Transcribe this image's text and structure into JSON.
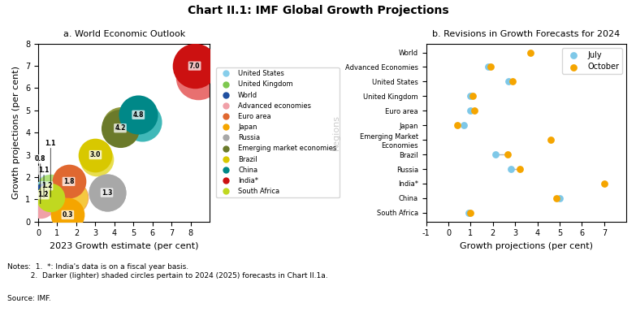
{
  "title": "Chart II.1: IMF Global Growth Projections",
  "annotations": [
    "Notes:  1.  *: India's data is on a fiscal year basis.\n          2.  Darker (lighter) shaded circles pertain to 2024 (2025) forecasts in Chart II.1a.",
    "Source: IMF."
  ],
  "chart_data": [
    {
      "type": "bubble",
      "title": "a. World Economic Outlook",
      "x_label": "2023 Growth estimate (per cent)",
      "y_label": "Growth projections (per cent)",
      "xlim": [
        0,
        9
      ],
      "ylim": [
        0,
        8
      ],
      "xticks": [
        0,
        1,
        2,
        3,
        4,
        5,
        6,
        7,
        8
      ],
      "yticks": [
        0,
        1,
        2,
        3,
        4,
        5,
        6,
        7,
        8
      ],
      "data_labels": true,
      "legend": "right",
      "series": [
        {
          "name": "United States",
          "color": "#87CEEB",
          "x": [
            0.55,
            0.25
          ],
          "values": [
            1.5,
            1.2
          ],
          "sizes": [
            650,
            650
          ],
          "colors": [
            "#b8dff5",
            "#87CEEB"
          ],
          "value_labels": [
            null,
            "1.2"
          ]
        },
        {
          "name": "United Kingdom",
          "color": "#7ec850",
          "x": [
            0.65,
            0.45
          ],
          "values": [
            1.5,
            1.2
          ],
          "sizes": [
            650,
            650
          ],
          "colors": [
            "#b0e07a",
            "#7ec850"
          ],
          "value_labels": [
            null,
            "1.2"
          ]
        },
        {
          "name": "World",
          "color": "#2050a0",
          "x": [
            0.5,
            0.3
          ],
          "values": [
            1.1,
            1.1
          ],
          "sizes": [
            650,
            650
          ],
          "colors": [
            "#4070c0",
            "#2050a0"
          ],
          "value_labels": [
            null,
            "1.1"
          ]
        },
        {
          "name": "Advanced economies",
          "color": "#f0a0a8",
          "x": [
            0.32,
            0.12
          ],
          "values": [
            0.9,
            0.8
          ],
          "sizes": [
            650,
            650
          ],
          "colors": [
            "#f8c8cc",
            "#f0a0a8"
          ],
          "value_labels": [
            null,
            "0.8"
          ]
        },
        {
          "name": "Euro area",
          "color": "#e06830",
          "x": [
            1.75,
            1.6
          ],
          "values": [
            1.1,
            1.8
          ],
          "sizes": [
            900,
            900
          ],
          "colors": [
            "#f0a868",
            "#e06830"
          ],
          "value_labels": [
            null,
            "1.8"
          ]
        },
        {
          "name": "Japan",
          "color": "#f5a500",
          "x": [
            1.7,
            1.55
          ],
          "values": [
            1.1,
            0.3
          ],
          "sizes": [
            900,
            900
          ],
          "colors": [
            "#f5c840",
            "#f5a500"
          ],
          "value_labels": [
            null,
            "0.3"
          ]
        },
        {
          "name": "Russia",
          "color": "#a8a8a8",
          "x": [
            3.6,
            3.6
          ],
          "values": [
            1.3,
            1.3
          ],
          "sizes": [
            1100,
            1100
          ],
          "colors": [
            "#c8c8c8",
            "#a8a8a8"
          ],
          "value_labels": [
            null,
            "1.3"
          ]
        },
        {
          "name": "Emerging market economies",
          "color": "#6b7a2a",
          "x": [
            4.35,
            4.3
          ],
          "values": [
            4.3,
            4.2
          ],
          "sizes": [
            1150,
            1150
          ],
          "colors": [
            "#909a40",
            "#6b7a2a"
          ],
          "value_labels": [
            null,
            "4.2"
          ]
        },
        {
          "name": "Brazil",
          "color": "#d8c800",
          "x": [
            3.05,
            3.0
          ],
          "values": [
            2.8,
            3.0
          ],
          "sizes": [
            900,
            900
          ],
          "colors": [
            "#e8de50",
            "#d8c800"
          ],
          "value_labels": [
            null,
            "3.0"
          ]
        },
        {
          "name": "China",
          "color": "#008888",
          "x": [
            5.45,
            5.25
          ],
          "values": [
            4.5,
            4.8
          ],
          "sizes": [
            1200,
            1200
          ],
          "colors": [
            "#40b8b8",
            "#008888"
          ],
          "value_labels": [
            null,
            "4.8"
          ]
        },
        {
          "name": "India*",
          "color": "#cc1111",
          "x": [
            8.4,
            8.2
          ],
          "values": [
            6.5,
            7.0
          ],
          "sizes": [
            1600,
            1600
          ],
          "colors": [
            "#e87070",
            "#cc1111"
          ],
          "value_labels": [
            null,
            "7.0"
          ]
        },
        {
          "name": "South Africa",
          "color": "#c0d820",
          "x": [
            0.7,
            0.65
          ],
          "values": [
            1.1,
            1.1
          ],
          "sizes": [
            650,
            650
          ],
          "colors": [
            "#d8f040",
            "#c0d820"
          ],
          "value_labels": [
            null,
            "1.1"
          ]
        }
      ]
    },
    {
      "type": "dot",
      "title": "b. Revisions in Growth Forecasts for 2024",
      "x_label": "Growth projections (per cent)",
      "y_label": "Regions",
      "orientation": "horizontal",
      "xlim": [
        -1,
        8
      ],
      "xticks": [
        -1,
        0,
        1,
        2,
        3,
        4,
        5,
        6,
        7
      ],
      "legend": "upper right",
      "categories": [
        "World",
        "Advanced Economies",
        "United States",
        "United Kingdom",
        "Euro area",
        "Japan",
        "Emerging Market\nEconomies",
        "Brazil",
        "Russia",
        "India*",
        "China",
        "South Africa"
      ],
      "series": [
        {
          "name": "July",
          "color": "#7ec8e8",
          "values": [
            null,
            1.8,
            2.7,
            1.0,
            1.0,
            0.7,
            null,
            2.1,
            2.8,
            null,
            5.0,
            0.9
          ]
        },
        {
          "name": "October",
          "color": "#f5a500",
          "values": [
            3.7,
            1.9,
            2.9,
            1.1,
            1.15,
            0.4,
            4.6,
            2.65,
            3.2,
            7.0,
            4.85,
            1.0
          ]
        }
      ]
    }
  ]
}
